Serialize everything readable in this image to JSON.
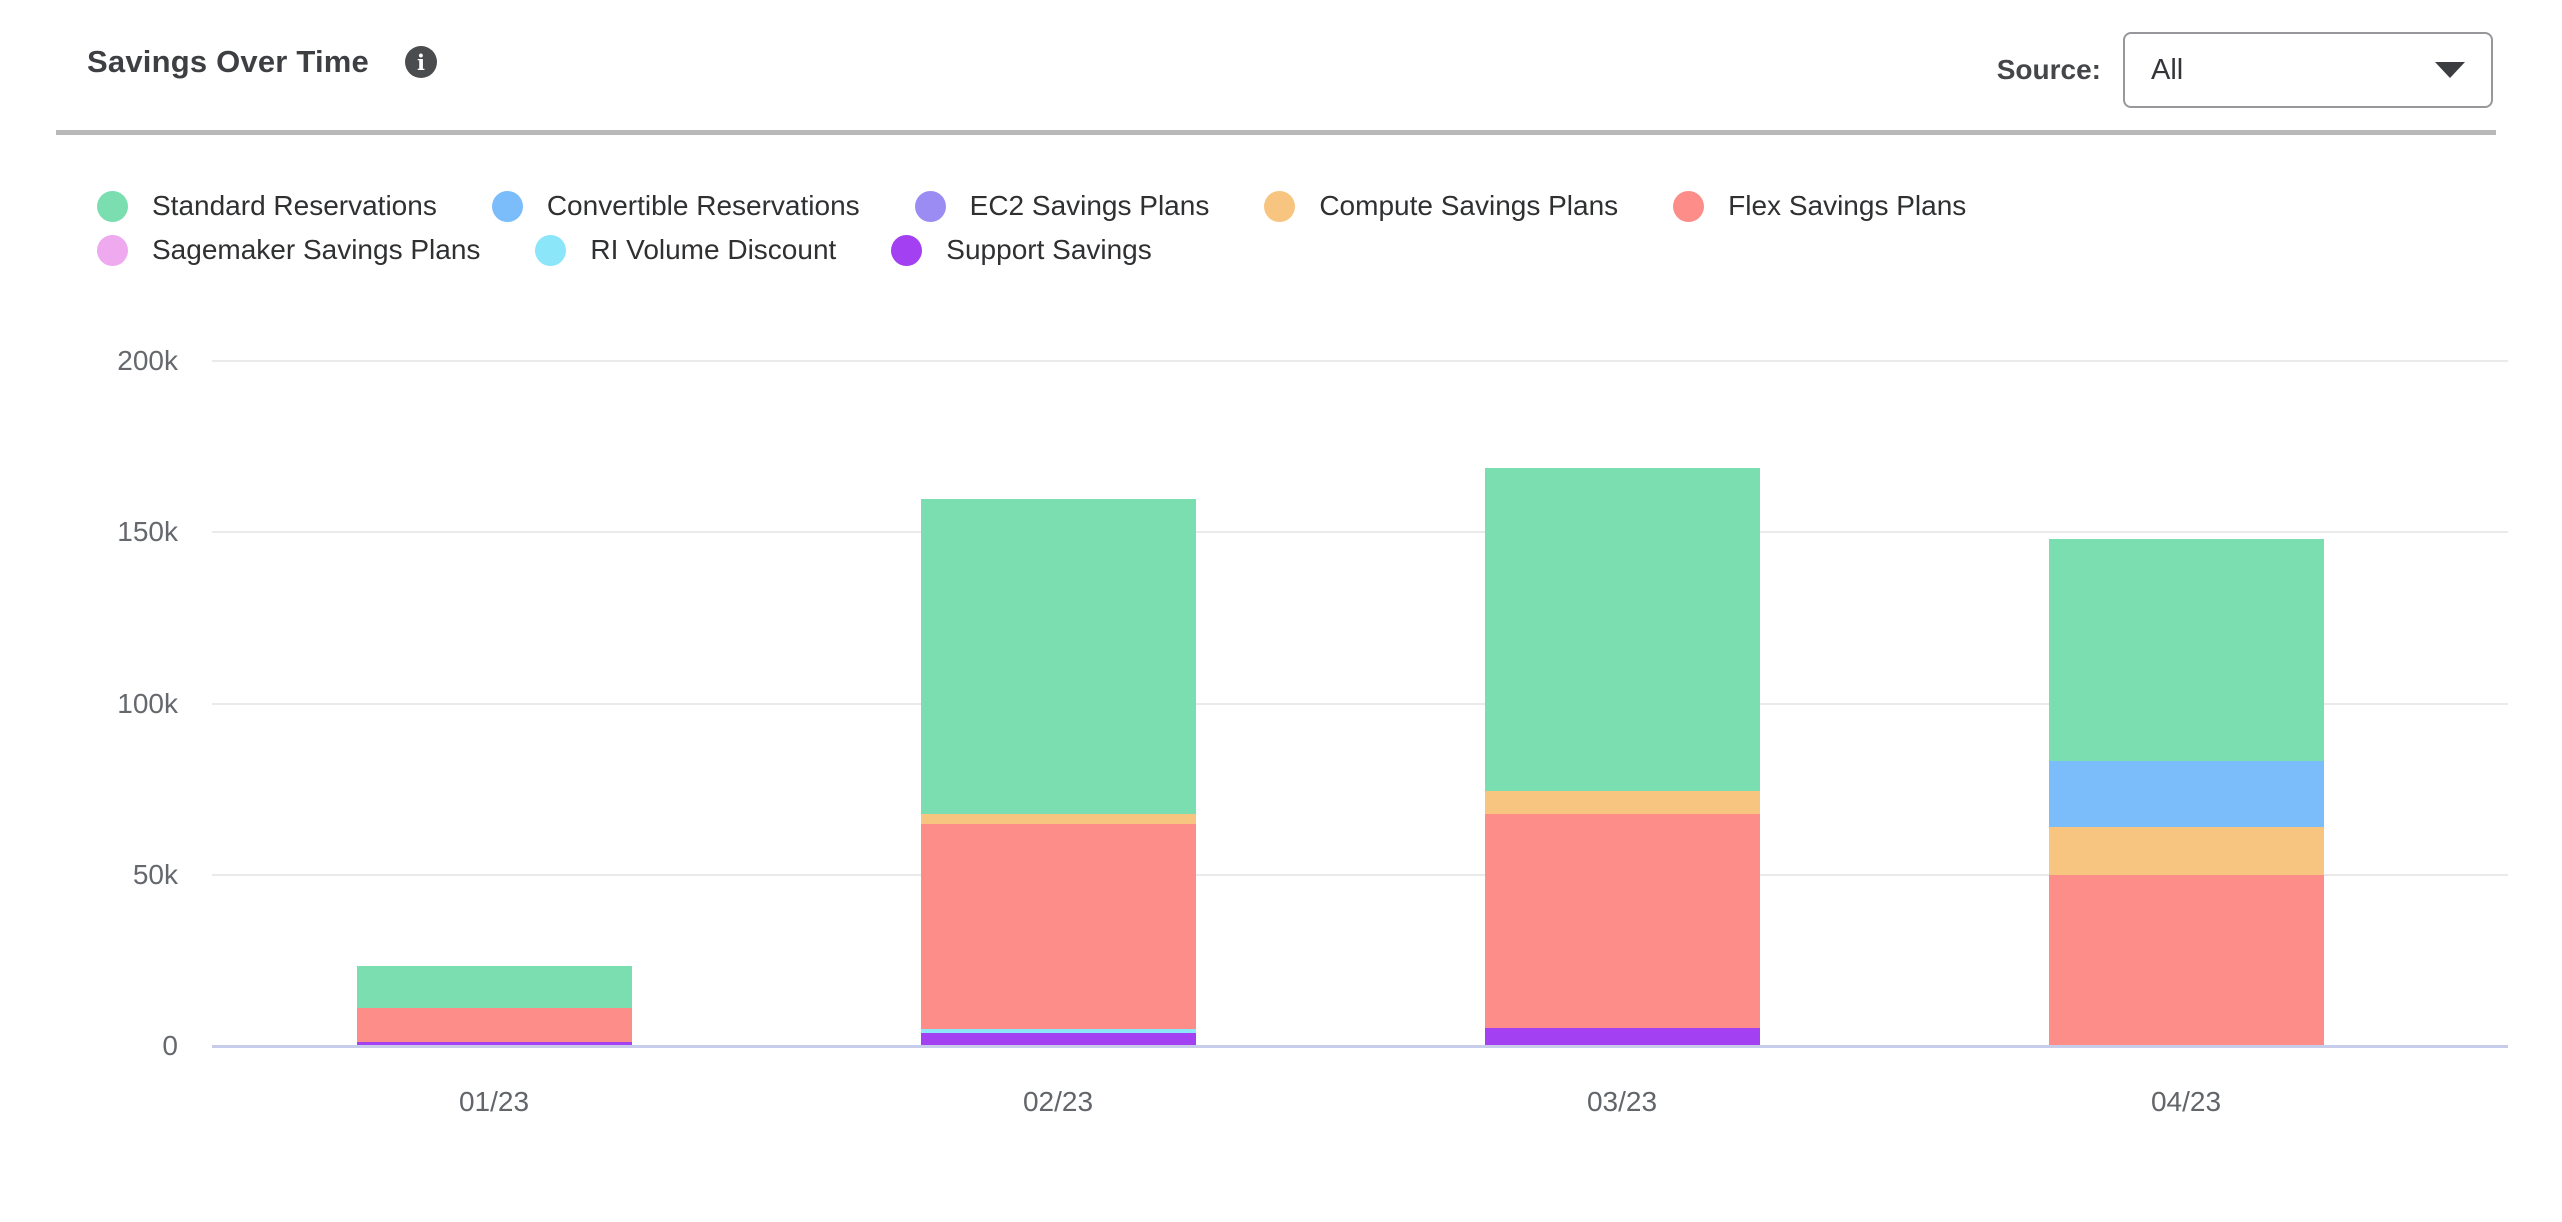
{
  "header": {
    "title": "Savings Over Time",
    "info_icon": "i",
    "source_label": "Source:",
    "source_value": "All"
  },
  "chart_data": {
    "type": "bar",
    "stacked": true,
    "title": "Savings Over Time",
    "categories": [
      "01/23",
      "02/23",
      "03/23",
      "04/23"
    ],
    "series": [
      {
        "name": "Standard Reservations",
        "color": "#7BDEB0",
        "values": [
          12400,
          91900,
          94200,
          64800
        ]
      },
      {
        "name": "Convertible Reservations",
        "color": "#7BBCFA",
        "values": [
          0,
          0,
          0,
          19200
        ]
      },
      {
        "name": "EC2 Savings Plans",
        "color": "#9B8CF4",
        "values": [
          0,
          0,
          0,
          0
        ]
      },
      {
        "name": "Compute Savings Plans",
        "color": "#F8C580",
        "values": [
          0,
          2900,
          6800,
          14100
        ]
      },
      {
        "name": "Flex Savings Plans",
        "color": "#FC8D89",
        "values": [
          9900,
          59800,
          62500,
          49900
        ]
      },
      {
        "name": "Sagemaker Savings Plans",
        "color": "#EFA9EF",
        "values": [
          0,
          0,
          0,
          0
        ]
      },
      {
        "name": "RI Volume Discount",
        "color": "#8AE6F8",
        "values": [
          0,
          1200,
          0,
          0
        ]
      },
      {
        "name": "Support Savings",
        "color": "#A340F2",
        "values": [
          1100,
          3800,
          5200,
          0
        ]
      }
    ],
    "ylim": [
      0,
      200000
    ],
    "ytick_values": [
      0,
      50000,
      100000,
      150000,
      200000
    ],
    "ytick_labels": [
      "0",
      "50k",
      "100k",
      "150k",
      "200k"
    ],
    "legend_position": "top",
    "grid": true,
    "colors": {
      "gridline": "#eaeaea",
      "axis_line": "#c6cce9",
      "tick_text": "#65686d",
      "separator": "#b9b9ba",
      "title_text": "#3d3f42",
      "info_icon_bg": "#4a4c4e"
    }
  }
}
